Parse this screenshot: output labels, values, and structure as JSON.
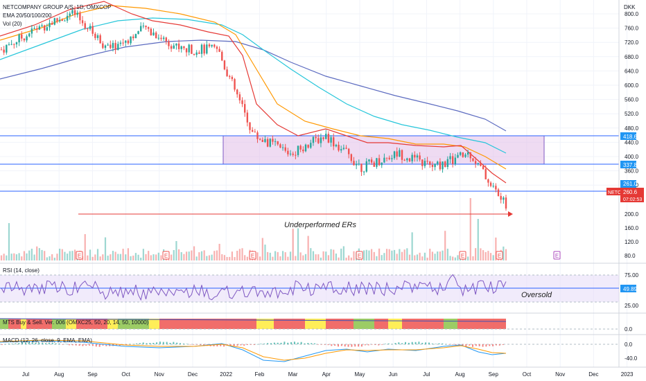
{
  "header": {
    "symbol": "NETCOMPANY GROUP A/S, 1D, OMXCOP",
    "ema": "EMA 20/50/100/200",
    "vol": "Vol (20)",
    "currency": "DKK"
  },
  "price_axis": {
    "ticks": [
      "800.0",
      "760.0",
      "720.0",
      "680.0",
      "640.0",
      "600.0",
      "560.0",
      "520.0",
      "480.0",
      "440.0",
      "400.0",
      "360.0",
      "320.0"
    ]
  },
  "badges": {
    "level_high": "418.6",
    "level_low": "337.8",
    "ema_value": "261.0",
    "symbol_tag": "NETC",
    "last_price": "260.6",
    "countdown": "07:02:53"
  },
  "volume_axis": {
    "ticks": [
      "200.0",
      "160.0",
      "120.0",
      "80.0"
    ]
  },
  "annotations": {
    "underperformed": "Underperformed ERs",
    "oversold": "Oversold",
    "earnings_marker": "E"
  },
  "rsi": {
    "label": "RSI (14, close)",
    "ticks": [
      "75.00",
      "25.00"
    ],
    "value": "49.89"
  },
  "mts": {
    "label": "MTS Buy & Sell. Ver. 006 (OMXC25, 50, 20, 14, 50, 10000)",
    "tick": "0.0"
  },
  "macd": {
    "label": "MACD (12, 26, close, 9, EMA, EMA)",
    "ticks": [
      "0.0",
      "-40.0"
    ]
  },
  "time_axis": [
    "Jul",
    "Aug",
    "Sep",
    "Oct",
    "Nov",
    "Dec",
    "2022",
    "Feb",
    "Mar",
    "Apr",
    "May",
    "Jun",
    "Jul",
    "Aug",
    "Sep",
    "Oct",
    "Nov",
    "Dec",
    "2023"
  ],
  "colors": {
    "up": "#26a69a",
    "down": "#ef5350",
    "ema20": "#e53935",
    "ema50": "#ff9800",
    "ema100": "#26c6da",
    "ema200": "#5c6bc0",
    "range_box": "#e1bee7",
    "level_line": "#2962ff",
    "rsi_line": "#7e57c2",
    "badge_blue": "#2196f3",
    "badge_red": "#e53935"
  },
  "chart_data": {
    "type": "candlestick",
    "x": [
      "2021-07",
      "2021-08",
      "2021-09",
      "2021-10",
      "2021-11",
      "2021-12",
      "2022-01",
      "2022-02",
      "2022-03",
      "2022-04",
      "2022-05",
      "2022-06",
      "2022-07",
      "2022-08",
      "2022-09"
    ],
    "close": [
      700,
      760,
      800,
      700,
      760,
      700,
      700,
      460,
      410,
      460,
      370,
      410,
      370,
      410,
      260
    ],
    "levels": [
      418.6,
      337.8
    ],
    "last_price": 260.6,
    "ylim": [
      250,
      820
    ]
  }
}
